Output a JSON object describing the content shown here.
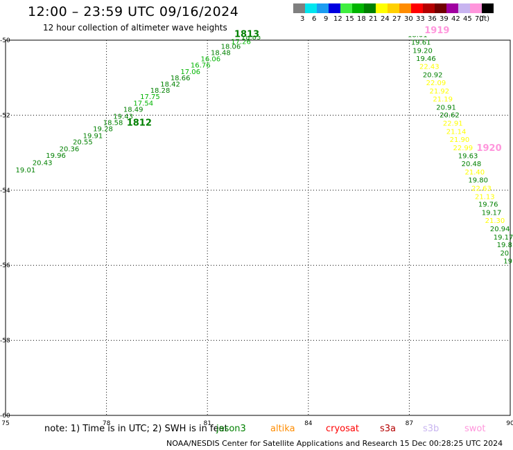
{
  "title": "12:00 – 23:59 UTC 09/16/2024",
  "subtitle": "12 hour collection of altimeter wave heights",
  "legend": {
    "unit": "(ft)",
    "entries": [
      {
        "label": "3",
        "color": "#7f7f7f"
      },
      {
        "label": "6",
        "color": "#00e5ee"
      },
      {
        "label": "9",
        "color": "#1c9cf0"
      },
      {
        "label": "12",
        "color": "#0000e0"
      },
      {
        "label": "15",
        "color": "#40ee40"
      },
      {
        "label": "18",
        "color": "#00b400"
      },
      {
        "label": "21",
        "color": "#008000"
      },
      {
        "label": "24",
        "color": "#ffff00"
      },
      {
        "label": "27",
        "color": "#ffd000"
      },
      {
        "label": "30",
        "color": "#ff8c00"
      },
      {
        "label": "33",
        "color": "#ff0000"
      },
      {
        "label": "36",
        "color": "#b40000"
      },
      {
        "label": "39",
        "color": "#700000"
      },
      {
        "label": "42",
        "color": "#a000a0"
      },
      {
        "label": "45",
        "color": "#c8b4f0"
      },
      {
        "label": "70",
        "color": "#ff96dc"
      },
      {
        "label": "",
        "color": "#000000"
      }
    ]
  },
  "map": {
    "lon_ticks": [
      "75",
      "78",
      "81",
      "84",
      "87",
      "90"
    ],
    "lat_ticks": [
      "-50",
      "-52",
      "-54",
      "-56",
      "-58",
      "-60"
    ],
    "lon_range": [
      75,
      90
    ],
    "lat_range": [
      -50,
      -60
    ]
  },
  "tracks": [
    {
      "id": "1812",
      "time_label": "1812",
      "label_pos": {
        "lon": 78.6,
        "lat": -52.28
      },
      "label_color": "#008000",
      "points": [
        {
          "lon": 75.3,
          "lat": -53.52,
          "v": "19.01",
          "color": "#008000"
        },
        {
          "lon": 75.8,
          "lat": -53.33,
          "v": "20.43",
          "color": "#008000"
        },
        {
          "lon": 76.2,
          "lat": -53.14,
          "v": "19.96",
          "color": "#008000"
        },
        {
          "lon": 76.6,
          "lat": -52.96,
          "v": "20.36",
          "color": "#008000"
        },
        {
          "lon": 77.0,
          "lat": -52.78,
          "v": "20.55",
          "color": "#008000"
        },
        {
          "lon": 77.3,
          "lat": -52.61,
          "v": "19.91",
          "color": "#008000"
        },
        {
          "lon": 77.6,
          "lat": -52.43,
          "v": "19.28",
          "color": "#008000"
        },
        {
          "lon": 77.9,
          "lat": -52.26,
          "v": "18.58",
          "color": "#008000"
        },
        {
          "lon": 78.2,
          "lat": -52.09,
          "v": "19.43",
          "color": "#008000"
        },
        {
          "lon": 78.5,
          "lat": -51.91,
          "v": "18.49",
          "color": "#008000"
        },
        {
          "lon": 78.8,
          "lat": -51.74,
          "v": "17.54",
          "color": "#00b400"
        },
        {
          "lon": 79.0,
          "lat": -51.57,
          "v": "17.75",
          "color": "#00b400"
        },
        {
          "lon": 79.3,
          "lat": -51.4,
          "v": "18.28",
          "color": "#008000"
        },
        {
          "lon": 79.6,
          "lat": -51.24,
          "v": "18.42",
          "color": "#008000"
        },
        {
          "lon": 79.9,
          "lat": -51.07,
          "v": "18.66",
          "color": "#008000"
        },
        {
          "lon": 80.2,
          "lat": -50.9,
          "v": "17.06",
          "color": "#00b400"
        },
        {
          "lon": 80.5,
          "lat": -50.73,
          "v": "16.76",
          "color": "#00b400"
        },
        {
          "lon": 80.8,
          "lat": -50.56,
          "v": "16.06",
          "color": "#00b400"
        },
        {
          "lon": 81.1,
          "lat": -50.4,
          "v": "18.48",
          "color": "#008000"
        },
        {
          "lon": 81.4,
          "lat": -50.23,
          "v": "18.06",
          "color": "#008000"
        },
        {
          "lon": 81.7,
          "lat": -50.1,
          "v": "17.26",
          "color": "#00b400"
        },
        {
          "lon": 82.0,
          "lat": -49.98,
          "v": "18.83",
          "color": "#008000"
        }
      ]
    },
    {
      "id": "1813",
      "time_label": "1813",
      "label_pos": {
        "lon": 81.8,
        "lat": -49.92
      },
      "label_color": "#008000",
      "points": []
    },
    {
      "id": "1919",
      "time_label": "1919",
      "label_pos": {
        "lon": 87.45,
        "lat": -49.82
      },
      "label_color": "#ff96dc",
      "points": [
        {
          "lon": 86.95,
          "lat": -49.92,
          "v": "18.01",
          "color": "#008000"
        },
        {
          "lon": 87.05,
          "lat": -50.12,
          "v": "19.61",
          "color": "#008000"
        },
        {
          "lon": 87.1,
          "lat": -50.34,
          "v": "19.20",
          "color": "#008000"
        },
        {
          "lon": 87.2,
          "lat": -50.55,
          "v": "19.46",
          "color": "#008000"
        },
        {
          "lon": 87.3,
          "lat": -50.77,
          "v": "22.43",
          "color": "#ffff00"
        },
        {
          "lon": 87.4,
          "lat": -50.99,
          "v": "20.92",
          "color": "#008000"
        },
        {
          "lon": 87.5,
          "lat": -51.2,
          "v": "22.09",
          "color": "#ffff00"
        },
        {
          "lon": 87.6,
          "lat": -51.42,
          "v": "21.92",
          "color": "#ffff00"
        },
        {
          "lon": 87.7,
          "lat": -51.63,
          "v": "21.19",
          "color": "#ffff00"
        },
        {
          "lon": 87.8,
          "lat": -51.85,
          "v": "20.91",
          "color": "#008000"
        },
        {
          "lon": 87.9,
          "lat": -52.06,
          "v": "20.62",
          "color": "#008000"
        },
        {
          "lon": 88.0,
          "lat": -52.28,
          "v": "22.91",
          "color": "#ffff00"
        },
        {
          "lon": 88.1,
          "lat": -52.5,
          "v": "21.14",
          "color": "#ffff00"
        },
        {
          "lon": 88.2,
          "lat": -52.71,
          "v": "21.90",
          "color": "#ffff00"
        },
        {
          "lon": 88.3,
          "lat": -52.93,
          "v": "22.99",
          "color": "#ffff00"
        },
        {
          "lon": 88.45,
          "lat": -53.15,
          "v": "19.63",
          "color": "#008000"
        },
        {
          "lon": 88.55,
          "lat": -53.36,
          "v": "20.48",
          "color": "#008000"
        },
        {
          "lon": 88.65,
          "lat": -53.58,
          "v": "21.40",
          "color": "#ffff00"
        },
        {
          "lon": 88.75,
          "lat": -53.79,
          "v": "19.80",
          "color": "#008000"
        },
        {
          "lon": 88.85,
          "lat": -54.01,
          "v": "22.63",
          "color": "#ffff00"
        },
        {
          "lon": 88.95,
          "lat": -54.23,
          "v": "21.13",
          "color": "#ffff00"
        },
        {
          "lon": 89.05,
          "lat": -54.44,
          "v": "19.76",
          "color": "#008000"
        },
        {
          "lon": 89.15,
          "lat": -54.66,
          "v": "19.17",
          "color": "#008000"
        },
        {
          "lon": 89.25,
          "lat": -54.87,
          "v": "21.30",
          "color": "#ffff00"
        },
        {
          "lon": 89.4,
          "lat": -55.09,
          "v": "20.94",
          "color": "#008000"
        },
        {
          "lon": 89.5,
          "lat": -55.31,
          "v": "19.17",
          "color": "#008000"
        },
        {
          "lon": 89.6,
          "lat": -55.52,
          "v": "19.8",
          "color": "#008000"
        },
        {
          "lon": 89.7,
          "lat": -55.74,
          "v": "20.",
          "color": "#008000"
        },
        {
          "lon": 89.8,
          "lat": -55.95,
          "v": "19",
          "color": "#008000"
        }
      ]
    },
    {
      "id": "1920",
      "time_label": "1920",
      "label_pos": {
        "lon": 89.0,
        "lat": -52.95
      },
      "label_color": "#ff96dc",
      "points": []
    }
  ],
  "note": {
    "text": "note:  1) Time is in UTC; 2) SWH is in feet",
    "satellites": [
      {
        "name": "jason3",
        "color": "#008000"
      },
      {
        "name": "altika",
        "color": "#ff8c00"
      },
      {
        "name": "cryosat",
        "color": "#ff0000"
      },
      {
        "name": "s3a",
        "color": "#b40000"
      },
      {
        "name": "s3b",
        "color": "#c8b4f0"
      },
      {
        "name": "swot",
        "color": "#ff96dc"
      }
    ]
  },
  "footer": "NOAA/NESDIS Center for Satellite Applications and Research    15 Dec 00:28:25 UTC 2024"
}
